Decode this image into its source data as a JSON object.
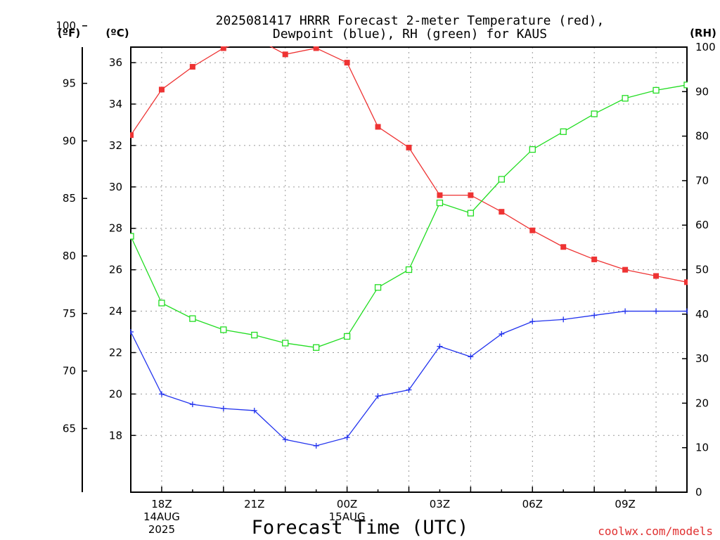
{
  "chart_data": {
    "type": "line",
    "title_lines": [
      "2025081417 HRRR Forecast 2-meter Temperature (red),",
      "Dewpoint (blue), RH (green) for KAUS"
    ],
    "xlabel": "Forecast Time (UTC)",
    "credit": "coolwx.com/models",
    "units": {
      "fahrenheit": "(ºF)",
      "celsius": "(ºC)",
      "rh": "(RH)"
    },
    "x": [
      "17Z",
      "18Z",
      "19Z",
      "20Z",
      "21Z",
      "22Z",
      "23Z",
      "00Z",
      "01Z",
      "02Z",
      "03Z",
      "04Z",
      "05Z",
      "06Z",
      "07Z",
      "08Z",
      "09Z",
      "10Z",
      "11Z"
    ],
    "x_ticks": [
      {
        "index": 1,
        "lines": [
          "18Z",
          "14AUG",
          "2025"
        ]
      },
      {
        "index": 4,
        "lines": [
          "21Z"
        ]
      },
      {
        "index": 7,
        "lines": [
          "00Z",
          "15AUG"
        ]
      },
      {
        "index": 10,
        "lines": [
          "03Z"
        ]
      },
      {
        "index": 13,
        "lines": [
          "06Z"
        ]
      },
      {
        "index": 16,
        "lines": [
          "09Z"
        ]
      }
    ],
    "y_left_celsius": {
      "range": [
        15.26,
        36.75
      ],
      "ticks": [
        18,
        20,
        22,
        24,
        26,
        28,
        30,
        32,
        34,
        36
      ]
    },
    "y_left_fahrenheit": {
      "ticks": [
        65,
        70,
        75,
        80,
        85,
        90,
        95,
        100
      ]
    },
    "y_right_rh": {
      "range": [
        0,
        100
      ],
      "ticks": [
        0,
        10,
        20,
        30,
        40,
        50,
        60,
        70,
        80,
        90,
        100
      ]
    },
    "grid": true,
    "series": [
      {
        "name": "Temperature",
        "axis": "celsius",
        "color": "#ee3333",
        "marker": "filled-square",
        "values": [
          32.5,
          34.7,
          35.8,
          36.7,
          37.2,
          36.4,
          36.7,
          36.0,
          32.9,
          31.9,
          29.6,
          29.6,
          28.8,
          27.9,
          27.1,
          26.5,
          26.0,
          25.7,
          25.4
        ]
      },
      {
        "name": "Dewpoint",
        "axis": "celsius",
        "color": "#2233ee",
        "marker": "plus",
        "values": [
          23.0,
          20.0,
          19.5,
          19.3,
          19.2,
          17.8,
          17.5,
          17.9,
          19.9,
          20.2,
          22.3,
          21.8,
          22.9,
          23.5,
          23.6,
          23.8,
          24.0,
          24.0,
          24.0
        ]
      },
      {
        "name": "RH",
        "axis": "rh",
        "color": "#22dd22",
        "marker": "open-square",
        "values": [
          57.5,
          42.5,
          39.0,
          36.5,
          35.3,
          33.5,
          32.5,
          35.0,
          46.0,
          50.0,
          65.0,
          62.7,
          70.3,
          77.0,
          81.0,
          85.0,
          88.5,
          90.3,
          91.5
        ]
      }
    ]
  }
}
